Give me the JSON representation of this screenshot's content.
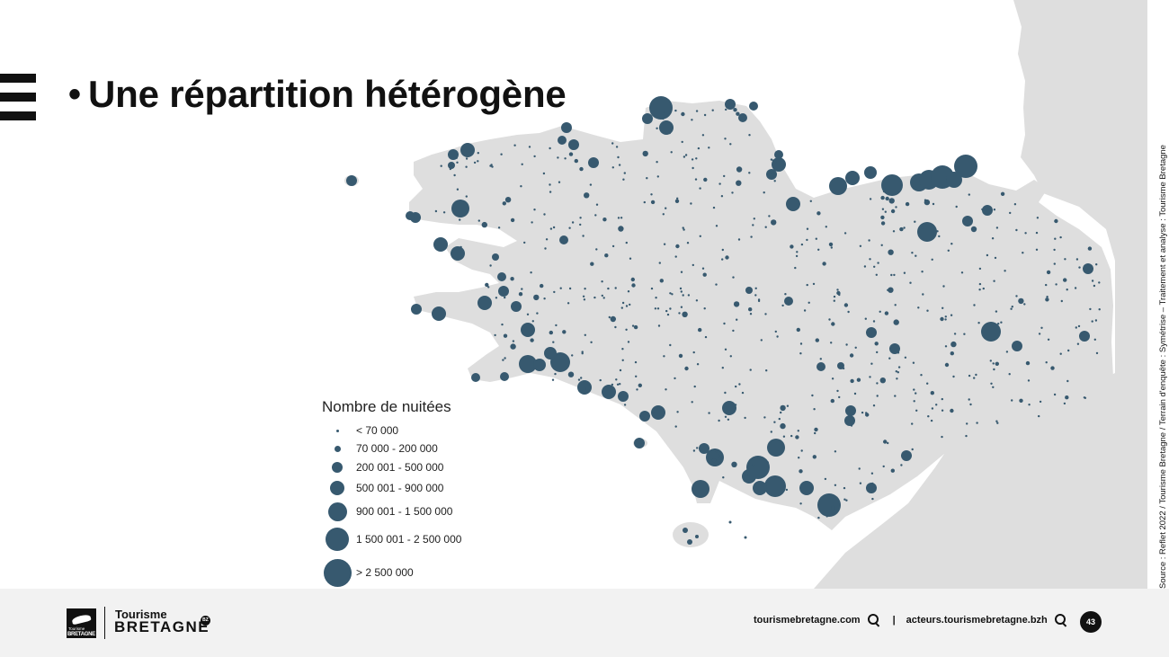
{
  "slide": {
    "title": "Une répartition hétérogène",
    "bullet": "•",
    "source": "Source : Reflet 2022 / Tourisme Bretagne / Terrain d'enquête : Symétrise – Traitement et analyse : Tourisme Bretagne",
    "page_number": "43"
  },
  "colors": {
    "land": "#dedede",
    "symbol": "#37596f",
    "footer": "#f2f2f2"
  },
  "legend": {
    "title": "Nombre de nuitées",
    "classes": [
      {
        "label": "< 70 000",
        "size": 1
      },
      {
        "label": "70 000 - 200 000",
        "size": 2
      },
      {
        "label": "200 001 - 500 000",
        "size": 3
      },
      {
        "label": "500 001 - 900 000",
        "size": 4
      },
      {
        "label": "900 001 - 1 500 000",
        "size": 5
      },
      {
        "label": "1 500 001 - 2 500 000",
        "size": 6
      },
      {
        "label": "> 2 500 000",
        "size": 7
      }
    ]
  },
  "footer": {
    "logo_line1": "Tourisme",
    "logo_line2": "BRETAGNE",
    "logo_badge": "BZ",
    "logo_mark_small": "Tourisme",
    "logo_mark_big": "BRETAGNE",
    "link1": "tourismebretagne.com",
    "separator": "|",
    "link2": "acteurs.tourismebretagne.bzh"
  },
  "icons": [
    "menu-icon",
    "search-icon",
    "logo-ermine-icon"
  ]
}
